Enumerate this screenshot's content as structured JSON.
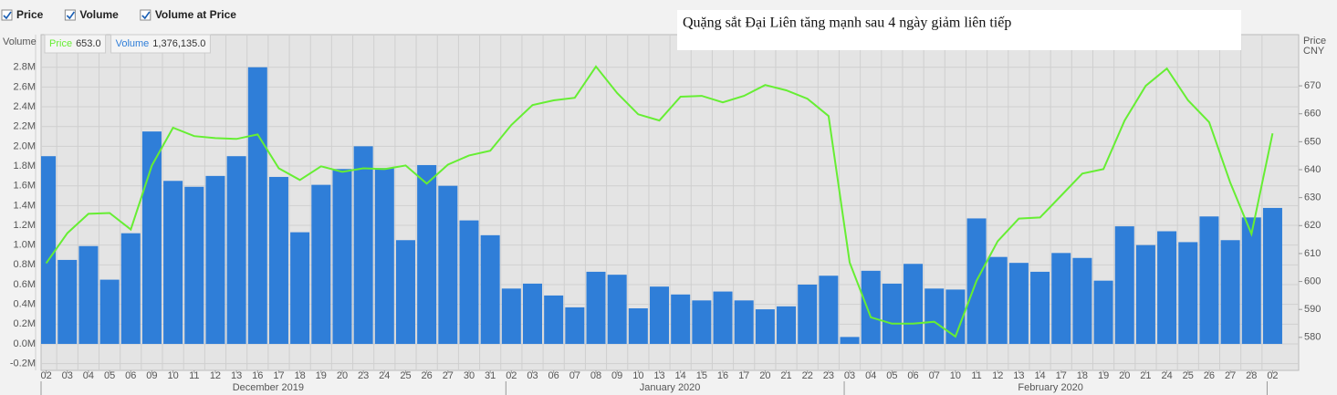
{
  "chart_data": {
    "type": "bar_line",
    "title": "Quặng sắt Đại Liên tăng mạnh sau 4 ngày giảm liên tiếp",
    "toggles": [
      "Price",
      "Volume",
      "Volume at Price"
    ],
    "readout": [
      {
        "name": "Price",
        "value": "653.0"
      },
      {
        "name": "Volume",
        "value": "1,376,135.0"
      }
    ],
    "y_label": "Volume",
    "y2_label": [
      "Price",
      "CNY"
    ],
    "month_labels": [
      "December 2019",
      "January 2020",
      "February 2020"
    ],
    "categories": [
      "02",
      "03",
      "04",
      "05",
      "06",
      "09",
      "10",
      "11",
      "12",
      "13",
      "16",
      "17",
      "18",
      "19",
      "20",
      "23",
      "24",
      "25",
      "26",
      "27",
      "30",
      "31",
      "02",
      "03",
      "06",
      "07",
      "08",
      "09",
      "10",
      "13",
      "14",
      "15",
      "16",
      "17",
      "20",
      "21",
      "22",
      "23",
      "03",
      "04",
      "05",
      "06",
      "07",
      "10",
      "11",
      "12",
      "13",
      "14",
      "17",
      "18",
      "19",
      "20",
      "21",
      "24",
      "25",
      "26",
      "27",
      "28",
      "02"
    ],
    "series": [
      {
        "name": "Volume",
        "type": "bar",
        "axis": "y",
        "color": "#2f7ed8",
        "values": [
          1900000,
          850000,
          990000,
          650000,
          1120000,
          2150000,
          1650000,
          1590000,
          1700000,
          1900000,
          2800000,
          1690000,
          1130000,
          1610000,
          1770000,
          2000000,
          1780000,
          1050000,
          1810000,
          1600000,
          1250000,
          1100000,
          560000,
          610000,
          490000,
          370000,
          730000,
          700000,
          360000,
          580000,
          500000,
          440000,
          530000,
          440000,
          350000,
          380000,
          600000,
          690000,
          70000,
          740000,
          610000,
          810000,
          560000,
          550000,
          1270000,
          880000,
          820000,
          730000,
          920000,
          870000,
          640000,
          1190000,
          1000000,
          1140000,
          1030000,
          1290000,
          1050000,
          1280000,
          1376135
        ]
      },
      {
        "name": "Price",
        "type": "line",
        "axis": "y2",
        "color": "#66ee33",
        "values": [
          606.5,
          617.3,
          624.2,
          624.5,
          618.6,
          641.5,
          655,
          652,
          651.3,
          651,
          652.6,
          640.5,
          636.3,
          641.2,
          639.2,
          640.5,
          640.2,
          641.5,
          635,
          641.8,
          645.1,
          646.8,
          656,
          663.1,
          664.8,
          665.7,
          676.9,
          667.4,
          659.8,
          657.6,
          666.1,
          666.4,
          664.1,
          666.4,
          670.3,
          668.4,
          665.4,
          659.2,
          606.8,
          587.2,
          584.9,
          584.9,
          585.6,
          580.3,
          600.3,
          614.4,
          622.5,
          622.9,
          630.7,
          638.6,
          640.2,
          657.6,
          670,
          676.2,
          664.8,
          657,
          635.3,
          617,
          653
        ]
      }
    ],
    "ylim": [
      -268000,
      3130000
    ],
    "yticks": [
      {
        "value": -200000,
        "label": "-0.2M"
      },
      {
        "value": 0,
        "label": "0.0M"
      },
      {
        "value": 200000,
        "label": "0.2M"
      },
      {
        "value": 400000,
        "label": "0.4M"
      },
      {
        "value": 600000,
        "label": "0.6M"
      },
      {
        "value": 800000,
        "label": "0.8M"
      },
      {
        "value": 1000000,
        "label": "1.0M"
      },
      {
        "value": 1200000,
        "label": "1.2M"
      },
      {
        "value": 1400000,
        "label": "1.4M"
      },
      {
        "value": 1600000,
        "label": "1.6M"
      },
      {
        "value": 1800000,
        "label": "1.8M"
      },
      {
        "value": 2000000,
        "label": "2.0M"
      },
      {
        "value": 2200000,
        "label": "2.2M"
      },
      {
        "value": 2400000,
        "label": "2.4M"
      },
      {
        "value": 2600000,
        "label": "2.6M"
      },
      {
        "value": 2800000,
        "label": "2.8M"
      }
    ],
    "y2lim": [
      568.2,
      688.3
    ],
    "y2ticks": [
      580,
      590,
      600,
      610,
      620,
      630,
      640,
      650,
      660,
      670
    ],
    "grid": true
  }
}
